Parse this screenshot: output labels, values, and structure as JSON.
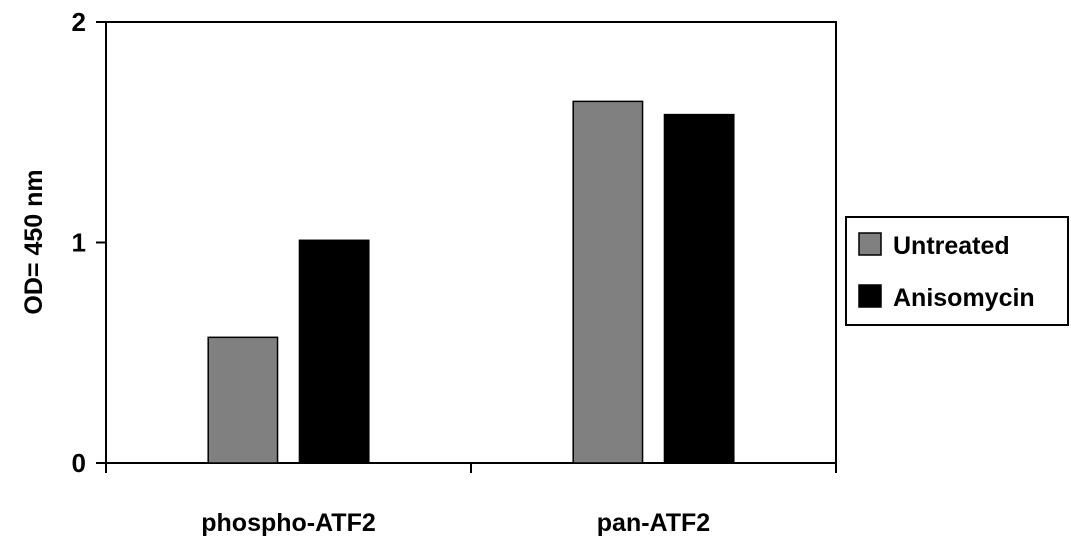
{
  "chart_data": {
    "type": "bar",
    "title": "",
    "xlabel": "",
    "ylabel": "OD= 450 nm",
    "ylim": [
      0,
      2
    ],
    "yticks": [
      0,
      1,
      2
    ],
    "categories": [
      "phospho-ATF2",
      "pan-ATF2"
    ],
    "series": [
      {
        "name": "Untreated",
        "values": [
          0.57,
          1.64
        ],
        "color": "#808080"
      },
      {
        "name": "Anisomycin",
        "values": [
          1.01,
          1.58
        ],
        "color": "#000000"
      }
    ],
    "grid": false,
    "legend_position": "right"
  }
}
